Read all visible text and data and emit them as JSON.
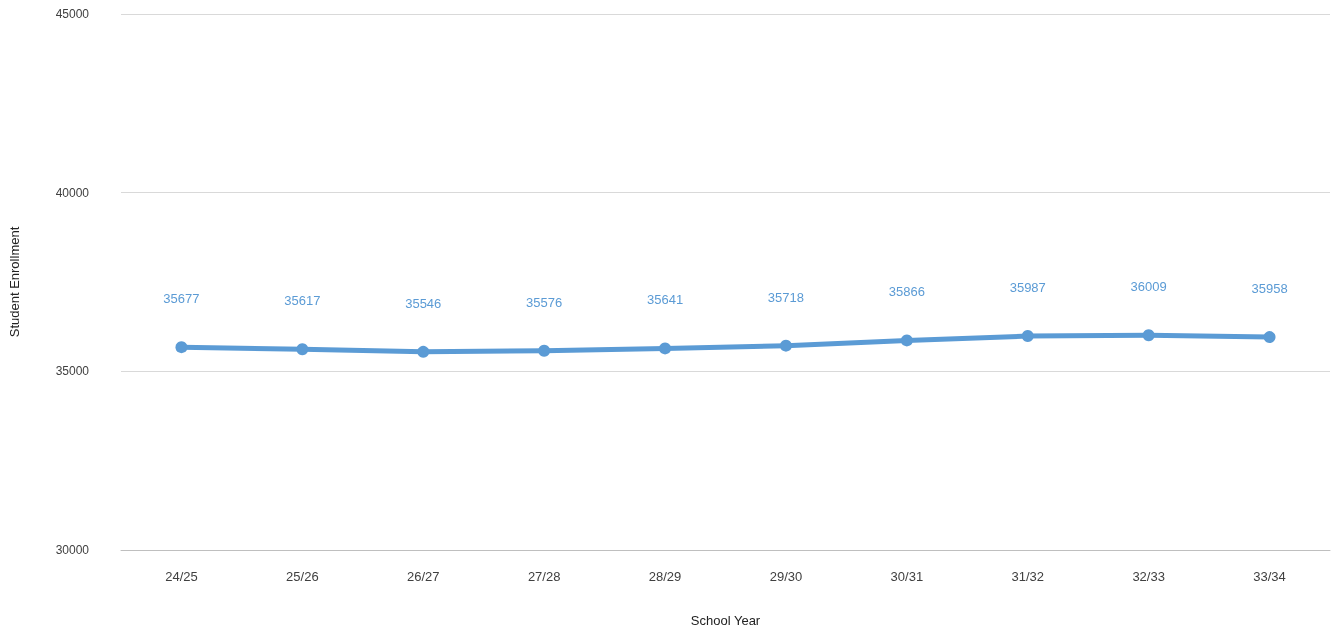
{
  "chart_data": {
    "type": "line",
    "xlabel": "School Year",
    "ylabel": "Student Enrollment",
    "categories": [
      "24/25",
      "25/26",
      "26/27",
      "27/28",
      "28/29",
      "29/30",
      "30/31",
      "31/32",
      "32/33",
      "33/34"
    ],
    "series": [
      {
        "color": "#5b9bd5",
        "values": [
          35677,
          35617,
          35546,
          35576,
          35641,
          35718,
          35866,
          35987,
          36009,
          35958
        ]
      }
    ],
    "ylim": [
      30000,
      45000
    ],
    "yticks": [
      30000,
      35000,
      40000,
      45000
    ],
    "grid": "y",
    "marker": "circle",
    "line_style": "solid",
    "data_labels": true
  }
}
